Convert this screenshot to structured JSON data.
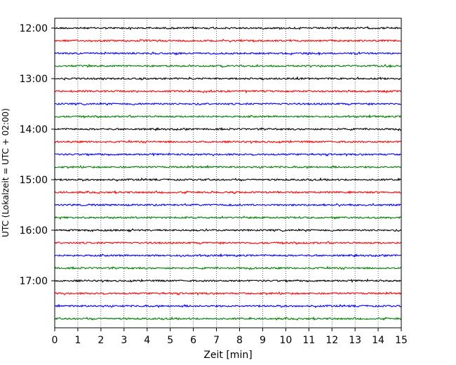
{
  "chart_data": {
    "type": "line",
    "xlabel": "Zeit  [min]",
    "ylabel": "UTC (Lokalzeit = UTC + 02:00)",
    "xlim": [
      0,
      15
    ],
    "x_ticks": [
      0,
      1,
      2,
      3,
      4,
      5,
      6,
      7,
      8,
      9,
      10,
      11,
      12,
      13,
      14,
      15
    ],
    "x_tick_labels": [
      "0",
      "1",
      "2",
      "3",
      "4",
      "5",
      "6",
      "7",
      "8",
      "9",
      "10",
      "11",
      "12",
      "13",
      "14",
      "15"
    ],
    "y_tick_labels": [
      "12:00",
      "13:00",
      "14:00",
      "15:00",
      "16:00",
      "17:00"
    ],
    "grid": "vertical dotted",
    "trace_colors": [
      "#000000",
      "#ff0000",
      "#0000ff",
      "#008000"
    ],
    "series": [
      {
        "start": "12:00",
        "color": "#000000"
      },
      {
        "start": "12:15",
        "color": "#ff0000"
      },
      {
        "start": "12:30",
        "color": "#0000ff"
      },
      {
        "start": "12:45",
        "color": "#008000"
      },
      {
        "start": "13:00",
        "color": "#000000"
      },
      {
        "start": "13:15",
        "color": "#ff0000"
      },
      {
        "start": "13:30",
        "color": "#0000ff"
      },
      {
        "start": "13:45",
        "color": "#008000"
      },
      {
        "start": "14:00",
        "color": "#000000"
      },
      {
        "start": "14:15",
        "color": "#ff0000"
      },
      {
        "start": "14:30",
        "color": "#0000ff"
      },
      {
        "start": "14:45",
        "color": "#008000"
      },
      {
        "start": "15:00",
        "color": "#000000"
      },
      {
        "start": "15:15",
        "color": "#ff0000"
      },
      {
        "start": "15:30",
        "color": "#0000ff"
      },
      {
        "start": "15:45",
        "color": "#008000"
      },
      {
        "start": "16:00",
        "color": "#000000"
      },
      {
        "start": "16:15",
        "color": "#ff0000"
      },
      {
        "start": "16:30",
        "color": "#0000ff"
      },
      {
        "start": "16:45",
        "color": "#008000"
      },
      {
        "start": "17:00",
        "color": "#000000"
      },
      {
        "start": "17:15",
        "color": "#ff0000"
      },
      {
        "start": "17:30",
        "color": "#0000ff"
      },
      {
        "start": "17:45",
        "color": "#008000"
      }
    ]
  }
}
